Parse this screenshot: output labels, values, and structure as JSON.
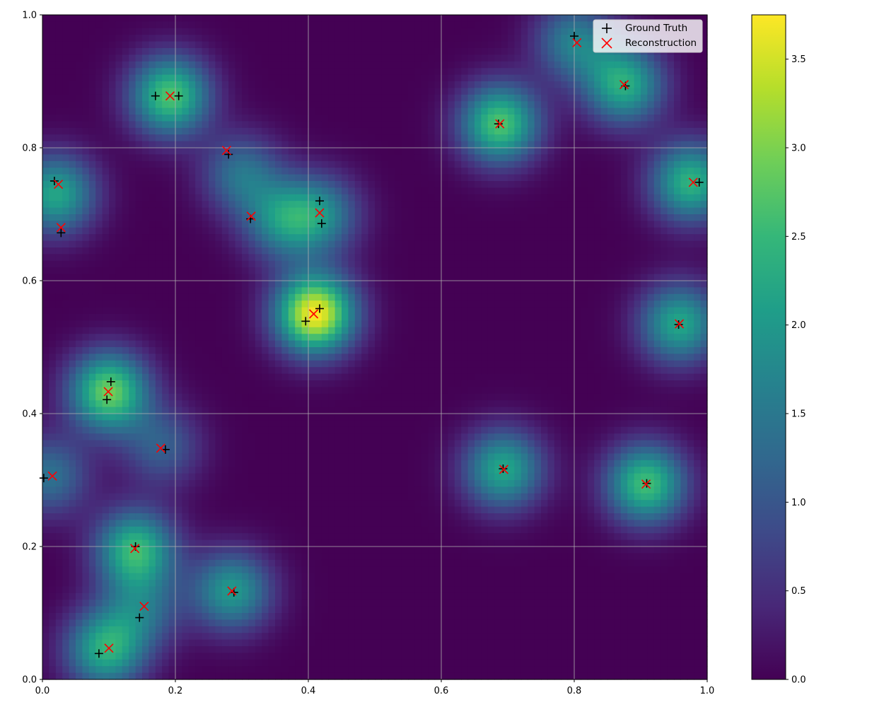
{
  "chart_data": {
    "type": "heatmap",
    "xlim": [
      0,
      1
    ],
    "ylim": [
      0,
      1
    ],
    "grid": true,
    "x_ticks": [
      "0.0",
      "0.2",
      "0.4",
      "0.6",
      "0.8",
      "1.0"
    ],
    "y_ticks": [
      "0.0",
      "0.2",
      "0.4",
      "0.6",
      "0.8",
      "1.0"
    ],
    "colorbar": {
      "colormap": "viridis",
      "range": [
        0,
        3.75
      ],
      "ticks": [
        "0.0",
        "0.5",
        "1.0",
        "1.5",
        "2.0",
        "2.5",
        "3.0",
        "3.5"
      ]
    },
    "legend": {
      "placement": "top-right",
      "entries": [
        {
          "label": "Ground Truth",
          "marker": "plus",
          "color": "#000000"
        },
        {
          "label": "Reconstruction",
          "marker": "x",
          "color": "#ff0000"
        }
      ]
    },
    "series": [
      {
        "name": "Ground Truth",
        "marker": "plus",
        "color": "#000000",
        "points": [
          [
            0.17,
            0.878
          ],
          [
            0.205,
            0.878
          ],
          [
            0.28,
            0.79
          ],
          [
            0.018,
            0.75
          ],
          [
            0.028,
            0.672
          ],
          [
            0.313,
            0.693
          ],
          [
            0.417,
            0.72
          ],
          [
            0.42,
            0.686
          ],
          [
            0.417,
            0.558
          ],
          [
            0.396,
            0.539
          ],
          [
            0.103,
            0.448
          ],
          [
            0.097,
            0.421
          ],
          [
            0.185,
            0.346
          ],
          [
            0.002,
            0.303
          ],
          [
            0.14,
            0.2
          ],
          [
            0.288,
            0.131
          ],
          [
            0.146,
            0.093
          ],
          [
            0.085,
            0.039
          ],
          [
            0.686,
            0.836
          ],
          [
            0.8,
            0.968
          ],
          [
            0.877,
            0.893
          ],
          [
            0.988,
            0.748
          ],
          [
            0.957,
            0.534
          ],
          [
            0.693,
            0.317
          ],
          [
            0.909,
            0.295
          ]
        ]
      },
      {
        "name": "Reconstruction",
        "marker": "x",
        "color": "#ff0000",
        "points": [
          [
            0.192,
            0.878
          ],
          [
            0.277,
            0.796
          ],
          [
            0.024,
            0.745
          ],
          [
            0.028,
            0.68
          ],
          [
            0.314,
            0.697
          ],
          [
            0.417,
            0.702
          ],
          [
            0.408,
            0.55
          ],
          [
            0.099,
            0.433
          ],
          [
            0.178,
            0.348
          ],
          [
            0.015,
            0.306
          ],
          [
            0.139,
            0.197
          ],
          [
            0.285,
            0.133
          ],
          [
            0.153,
            0.11
          ],
          [
            0.1,
            0.047
          ],
          [
            0.688,
            0.836
          ],
          [
            0.804,
            0.958
          ],
          [
            0.875,
            0.895
          ],
          [
            0.979,
            0.748
          ],
          [
            0.958,
            0.535
          ],
          [
            0.694,
            0.316
          ],
          [
            0.908,
            0.294
          ]
        ]
      }
    ],
    "density_blobs": [
      {
        "x": 0.192,
        "y": 0.878,
        "amplitude": 2.7
      },
      {
        "x": 0.3,
        "y": 0.76,
        "amplitude": 1.4
      },
      {
        "x": 0.02,
        "y": 0.73,
        "amplitude": 2.2
      },
      {
        "x": 0.36,
        "y": 0.69,
        "amplitude": 1.6
      },
      {
        "x": 0.418,
        "y": 0.7,
        "amplitude": 1.6
      },
      {
        "x": 0.41,
        "y": 0.55,
        "amplitude": 3.75
      },
      {
        "x": 0.1,
        "y": 0.433,
        "amplitude": 2.9
      },
      {
        "x": 0.18,
        "y": 0.35,
        "amplitude": 1.1
      },
      {
        "x": 0.01,
        "y": 0.306,
        "amplitude": 1.4
      },
      {
        "x": 0.14,
        "y": 0.195,
        "amplitude": 2.5
      },
      {
        "x": 0.285,
        "y": 0.133,
        "amplitude": 2.0
      },
      {
        "x": 0.15,
        "y": 0.105,
        "amplitude": 1.2
      },
      {
        "x": 0.095,
        "y": 0.045,
        "amplitude": 2.3
      },
      {
        "x": 0.688,
        "y": 0.836,
        "amplitude": 2.7
      },
      {
        "x": 0.8,
        "y": 0.96,
        "amplitude": 1.6
      },
      {
        "x": 0.875,
        "y": 0.895,
        "amplitude": 2.3
      },
      {
        "x": 0.975,
        "y": 0.748,
        "amplitude": 2.4
      },
      {
        "x": 0.958,
        "y": 0.535,
        "amplitude": 2.2
      },
      {
        "x": 0.693,
        "y": 0.316,
        "amplitude": 2.2
      },
      {
        "x": 0.908,
        "y": 0.294,
        "amplitude": 2.6
      }
    ],
    "blob_sigma": 0.042,
    "grid_cells": 100
  }
}
